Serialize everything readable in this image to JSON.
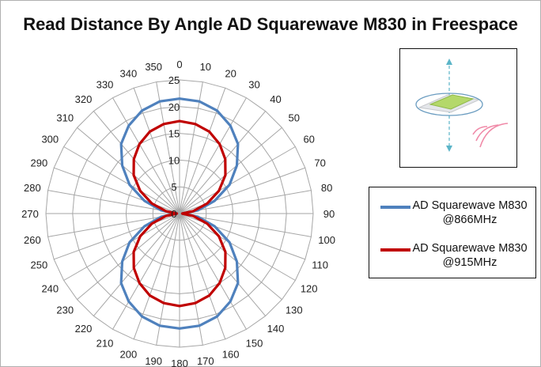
{
  "title": "Read Distance By Angle AD Squarewave M830 in Freespace",
  "chart_data": {
    "type": "polar-line",
    "title": "Read Distance By Angle AD Squarewave M830 in Freespace",
    "angle_ticks": [
      "0",
      "10",
      "20",
      "30",
      "40",
      "50",
      "60",
      "70",
      "80",
      "90",
      "100",
      "110",
      "120",
      "130",
      "140",
      "150",
      "160",
      "170",
      "180",
      "190",
      "200",
      "210",
      "220",
      "230",
      "240",
      "250",
      "260",
      "270",
      "280",
      "290",
      "300",
      "310",
      "320",
      "330",
      "340",
      "350"
    ],
    "angles": [
      0,
      10,
      20,
      30,
      40,
      50,
      60,
      70,
      80,
      90,
      100,
      110,
      120,
      130,
      140,
      150,
      160,
      170,
      180,
      190,
      200,
      210,
      220,
      230,
      240,
      250,
      260,
      270,
      280,
      290,
      300,
      310,
      320,
      330,
      340,
      350
    ],
    "radial_ticks": [
      "0",
      "5",
      "10",
      "15",
      "20",
      "25"
    ],
    "rlim": [
      0,
      25
    ],
    "grid": true,
    "series": [
      {
        "name": "AD Squarewave M830 @866MHz",
        "color": "#4f81bd",
        "values": [
          21.5,
          21.3,
          20.5,
          19.0,
          17.0,
          14.0,
          10.8,
          7.0,
          3.5,
          0.5,
          3.5,
          7.0,
          10.8,
          14.0,
          17.0,
          19.0,
          20.5,
          21.3,
          21.5,
          21.3,
          20.5,
          19.0,
          17.0,
          14.0,
          10.8,
          7.0,
          3.5,
          0.5,
          3.5,
          7.0,
          10.8,
          14.0,
          17.0,
          19.0,
          20.5,
          21.3
        ]
      },
      {
        "name": "AD Squarewave M830 @915MHz",
        "color": "#c00000",
        "values": [
          17.3,
          17.0,
          16.3,
          15.0,
          13.3,
          11.2,
          8.5,
          5.5,
          2.6,
          0.5,
          2.6,
          5.5,
          8.5,
          11.2,
          13.3,
          15.0,
          16.3,
          17.0,
          17.3,
          17.0,
          16.3,
          15.0,
          13.3,
          11.2,
          8.5,
          5.5,
          2.6,
          0.5,
          2.6,
          5.5,
          8.5,
          11.2,
          13.3,
          15.0,
          16.3,
          17.0
        ]
      }
    ],
    "legend": {
      "position": "right",
      "entries": [
        {
          "line1": "AD Squarewave M830",
          "line2": "@866MHz",
          "color": "#4f81bd"
        },
        {
          "line1": "AD Squarewave M830",
          "line2": "@915MHz",
          "color": "#c00000"
        }
      ]
    }
  },
  "inset": {
    "icon": "tag-orientation-diagram-icon"
  }
}
